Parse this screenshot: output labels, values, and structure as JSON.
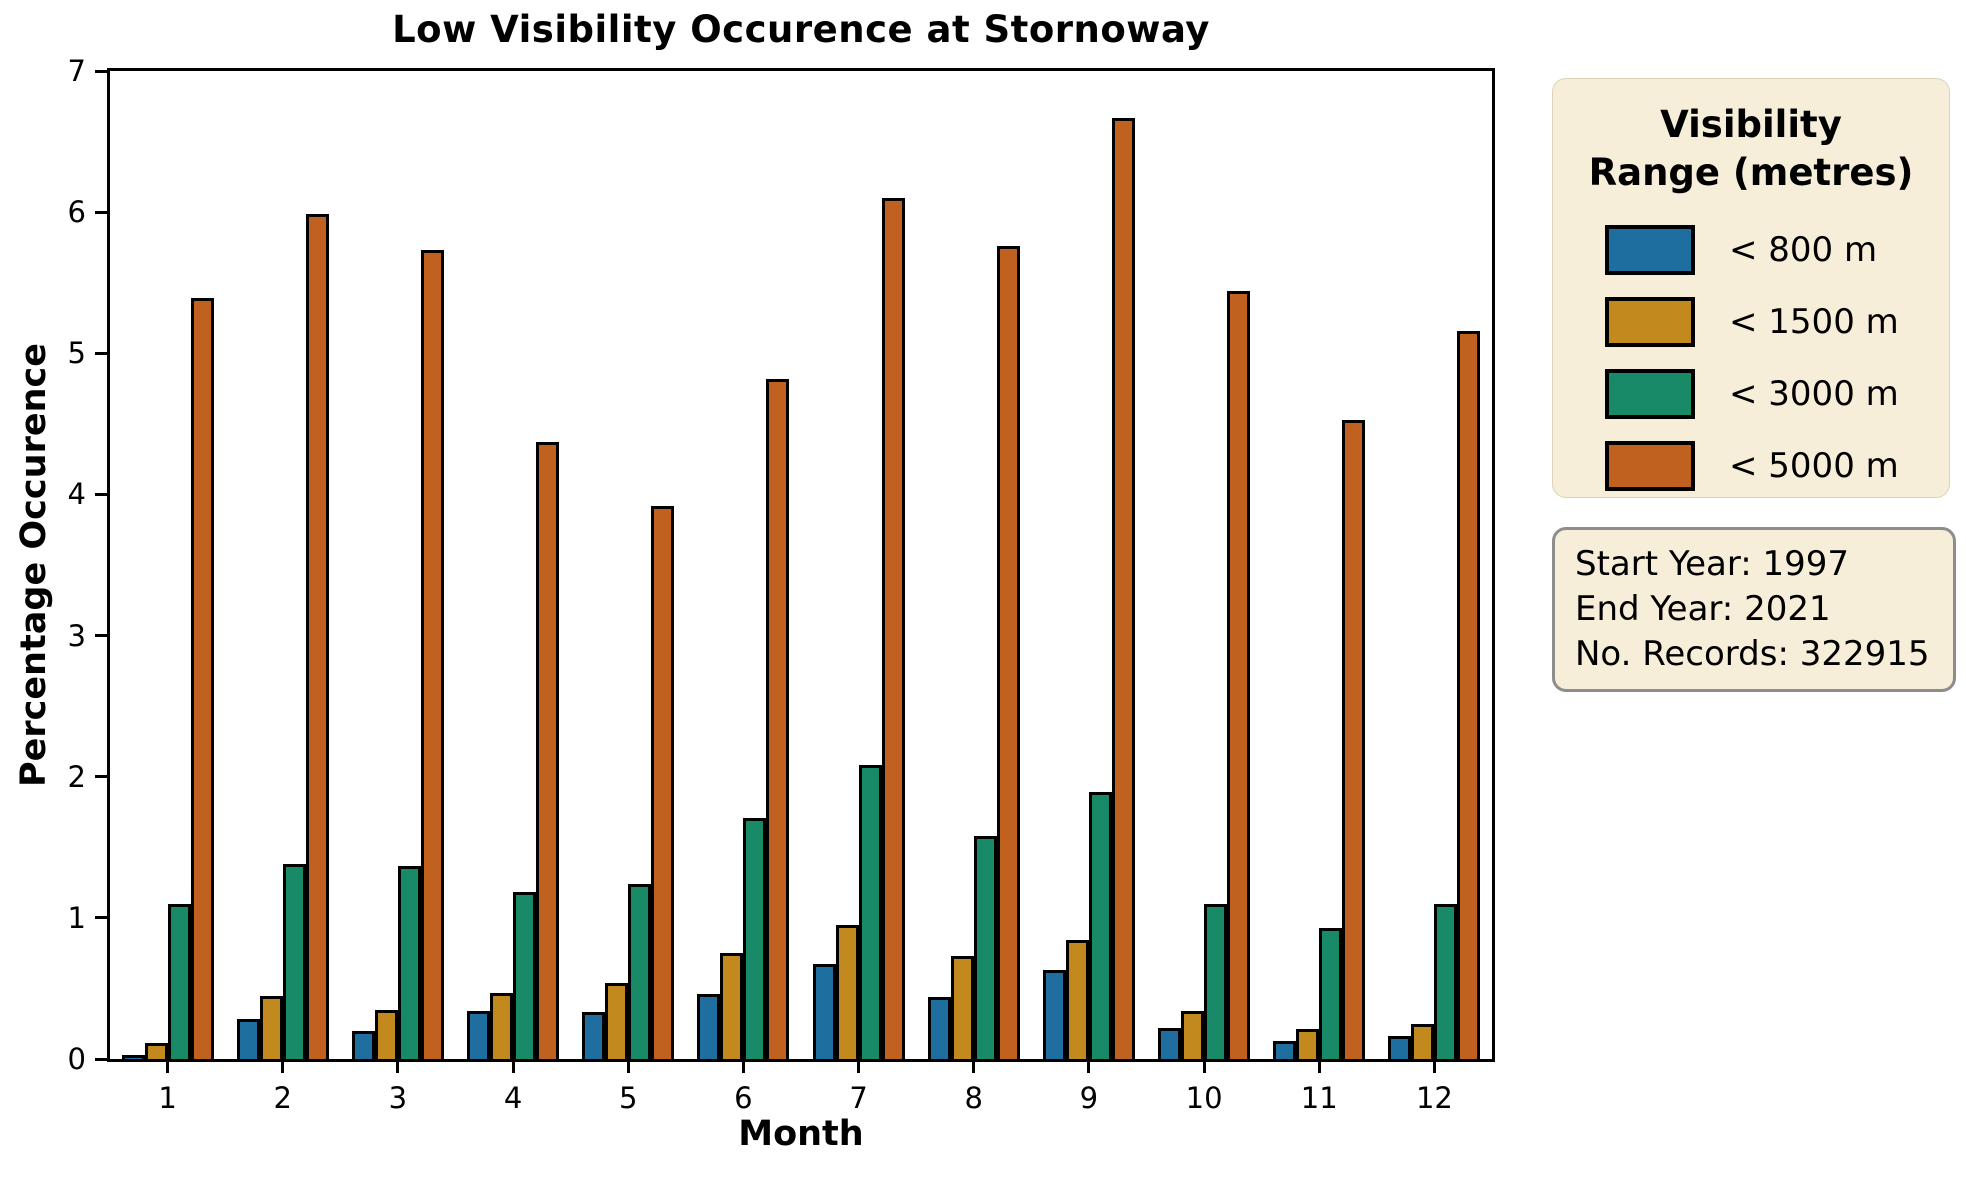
{
  "figure": {
    "background": "#ffffff",
    "axes_edge_color": "#000000"
  },
  "chart_data": {
    "type": "bar",
    "title": "Low Visibility Occurence at Stornoway",
    "xlabel": "Month",
    "ylabel": "Percentage Occurence",
    "categories": [
      "1",
      "2",
      "3",
      "4",
      "5",
      "6",
      "7",
      "8",
      "9",
      "10",
      "11",
      "12"
    ],
    "ylim": [
      0,
      7
    ],
    "yticks": [
      0,
      1,
      2,
      3,
      4,
      5,
      6,
      7
    ],
    "grid": false,
    "bar_edge_color": "#000000",
    "legend_position": "right-outside",
    "series": [
      {
        "name": "< 800 m",
        "color": "#1e6f9f",
        "values": [
          0.03,
          0.28,
          0.2,
          0.34,
          0.33,
          0.46,
          0.67,
          0.44,
          0.63,
          0.22,
          0.13,
          0.16
        ]
      },
      {
        "name": "< 1500 m",
        "color": "#c2891f",
        "values": [
          0.11,
          0.45,
          0.35,
          0.47,
          0.54,
          0.75,
          0.95,
          0.73,
          0.84,
          0.34,
          0.21,
          0.25
        ]
      },
      {
        "name": "< 3000 m",
        "color": "#188a67",
        "values": [
          1.1,
          1.38,
          1.37,
          1.18,
          1.24,
          1.71,
          2.08,
          1.58,
          1.89,
          1.1,
          0.93,
          1.1
        ]
      },
      {
        "name": "< 5000 m",
        "color": "#c06120",
        "values": [
          5.39,
          5.99,
          5.73,
          4.37,
          3.92,
          4.82,
          6.1,
          5.76,
          6.67,
          5.44,
          4.53,
          5.16
        ]
      }
    ]
  },
  "legend": {
    "title": "Visibility\nRange (metres)",
    "background": "#f7eed9"
  },
  "info_box": {
    "background": "#f7eed9",
    "lines": [
      "Start Year: 1997",
      "End Year: 2021",
      "No. Records: 322915"
    ]
  }
}
